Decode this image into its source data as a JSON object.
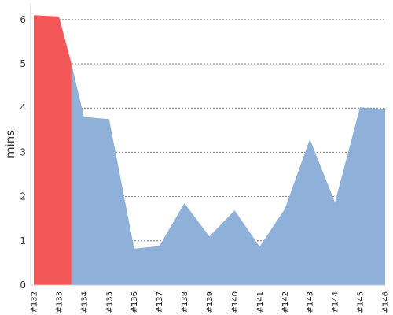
{
  "chart_data": {
    "type": "area",
    "title": "",
    "xlabel": "",
    "ylabel": "mins",
    "categories": [
      "#132",
      "#133",
      "#134",
      "#135",
      "#136",
      "#137",
      "#138",
      "#139",
      "#140",
      "#141",
      "#142",
      "#143",
      "#144",
      "#145",
      "#146"
    ],
    "values": [
      6.1,
      6.07,
      3.8,
      3.75,
      0.82,
      0.88,
      1.85,
      1.1,
      1.69,
      0.87,
      1.72,
      3.3,
      1.87,
      4.02,
      3.97
    ],
    "highlight": {
      "from": "#132",
      "to": "#133",
      "color": "#f45757"
    },
    "boundary_value": 5.0,
    "ylim": [
      0,
      6.3
    ],
    "yticks": [
      0,
      1,
      2,
      3,
      4,
      5,
      6
    ],
    "grid": true,
    "colors": {
      "area": "#8fb1d9",
      "highlight": "#f45757"
    }
  }
}
